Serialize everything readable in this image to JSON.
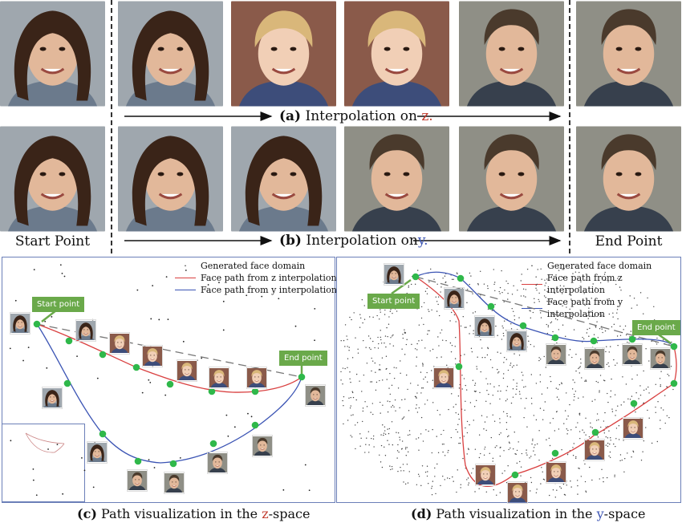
{
  "top_section": {
    "row_a_caption_prefix": "(a)",
    "row_a_caption_text": "Interpolation on",
    "row_a_caption_var": "z.",
    "row_b_caption_prefix": "(b)",
    "row_b_caption_text": "Interpolation on",
    "row_b_caption_var": "y.",
    "start_label": "Start Point",
    "end_label": "End Point"
  },
  "panel_c": {
    "legend": [
      "Generated face domain",
      "Face path from z interpolation",
      "Face path from y interpolation"
    ],
    "start_tag": "Start point",
    "end_tag": "End point",
    "caption_prefix": "(c)",
    "caption_text": "Path visualization in the",
    "caption_var": "z",
    "caption_suffix": "-space"
  },
  "panel_d": {
    "legend": [
      "Generated face domain",
      "Face path from z interpolation",
      "Face path from y interpolation"
    ],
    "start_tag": "Start point",
    "end_tag": "End point",
    "caption_prefix": "(d)",
    "caption_text": "Path visualization in the",
    "caption_var": "y",
    "caption_suffix": "-space"
  },
  "colors": {
    "z_path": "#d94040",
    "y_path": "#3b54b4",
    "node": "#2fb84a",
    "tag": "#6aa94a",
    "panel_border": "#6b7fb8"
  }
}
